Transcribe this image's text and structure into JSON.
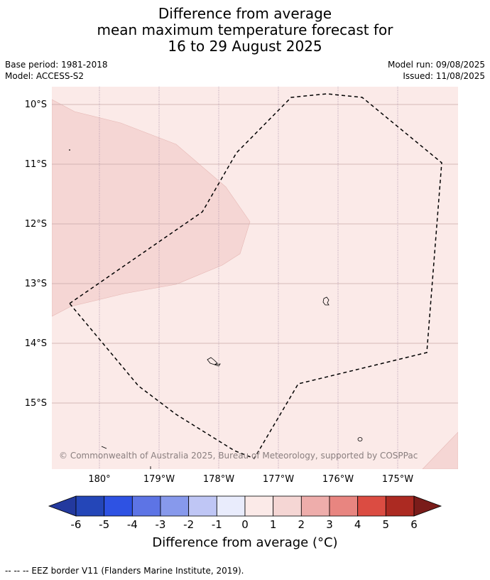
{
  "title": {
    "line1": "Difference from average",
    "line2": "mean maximum temperature forecast for",
    "line3": "16 to 29 August 2025"
  },
  "meta": {
    "base_period": "Base period: 1981-2018",
    "model": "Model: ACCESS-S2",
    "model_run": "Model run: 09/08/2025",
    "issued": "Issued: 11/08/2025"
  },
  "map": {
    "lat_labels": [
      "10°S",
      "11°S",
      "12°S",
      "13°S",
      "14°S",
      "15°S"
    ],
    "lon_labels": [
      "180°",
      "179°W",
      "178°W",
      "177°W",
      "176°W",
      "175°W"
    ],
    "copyright": "© Commonwealth of Australia 2025, Bureau of Meteorology, supported by COSPPac",
    "background_color": "#fbeae8",
    "warm_region_color": "#f5d6d4"
  },
  "colorbar": {
    "ticks": [
      "-6",
      "-5",
      "-4",
      "-3",
      "-2",
      "-1",
      "0",
      "1",
      "2",
      "3",
      "4",
      "5",
      "6"
    ],
    "colors": [
      "#23399e",
      "#2446b8",
      "#2e52e3",
      "#5d74e5",
      "#8799ec",
      "#bfc6f5",
      "#e9ecfc",
      "#fbeae8",
      "#f5d6d4",
      "#eeadab",
      "#e88580",
      "#db4c42",
      "#ac2a22",
      "#7a1c1a"
    ],
    "label": "Difference from average (°C)"
  },
  "footnote": "-- -- -- EEZ border V11 (Flanders Marine Institute, 2019)."
}
